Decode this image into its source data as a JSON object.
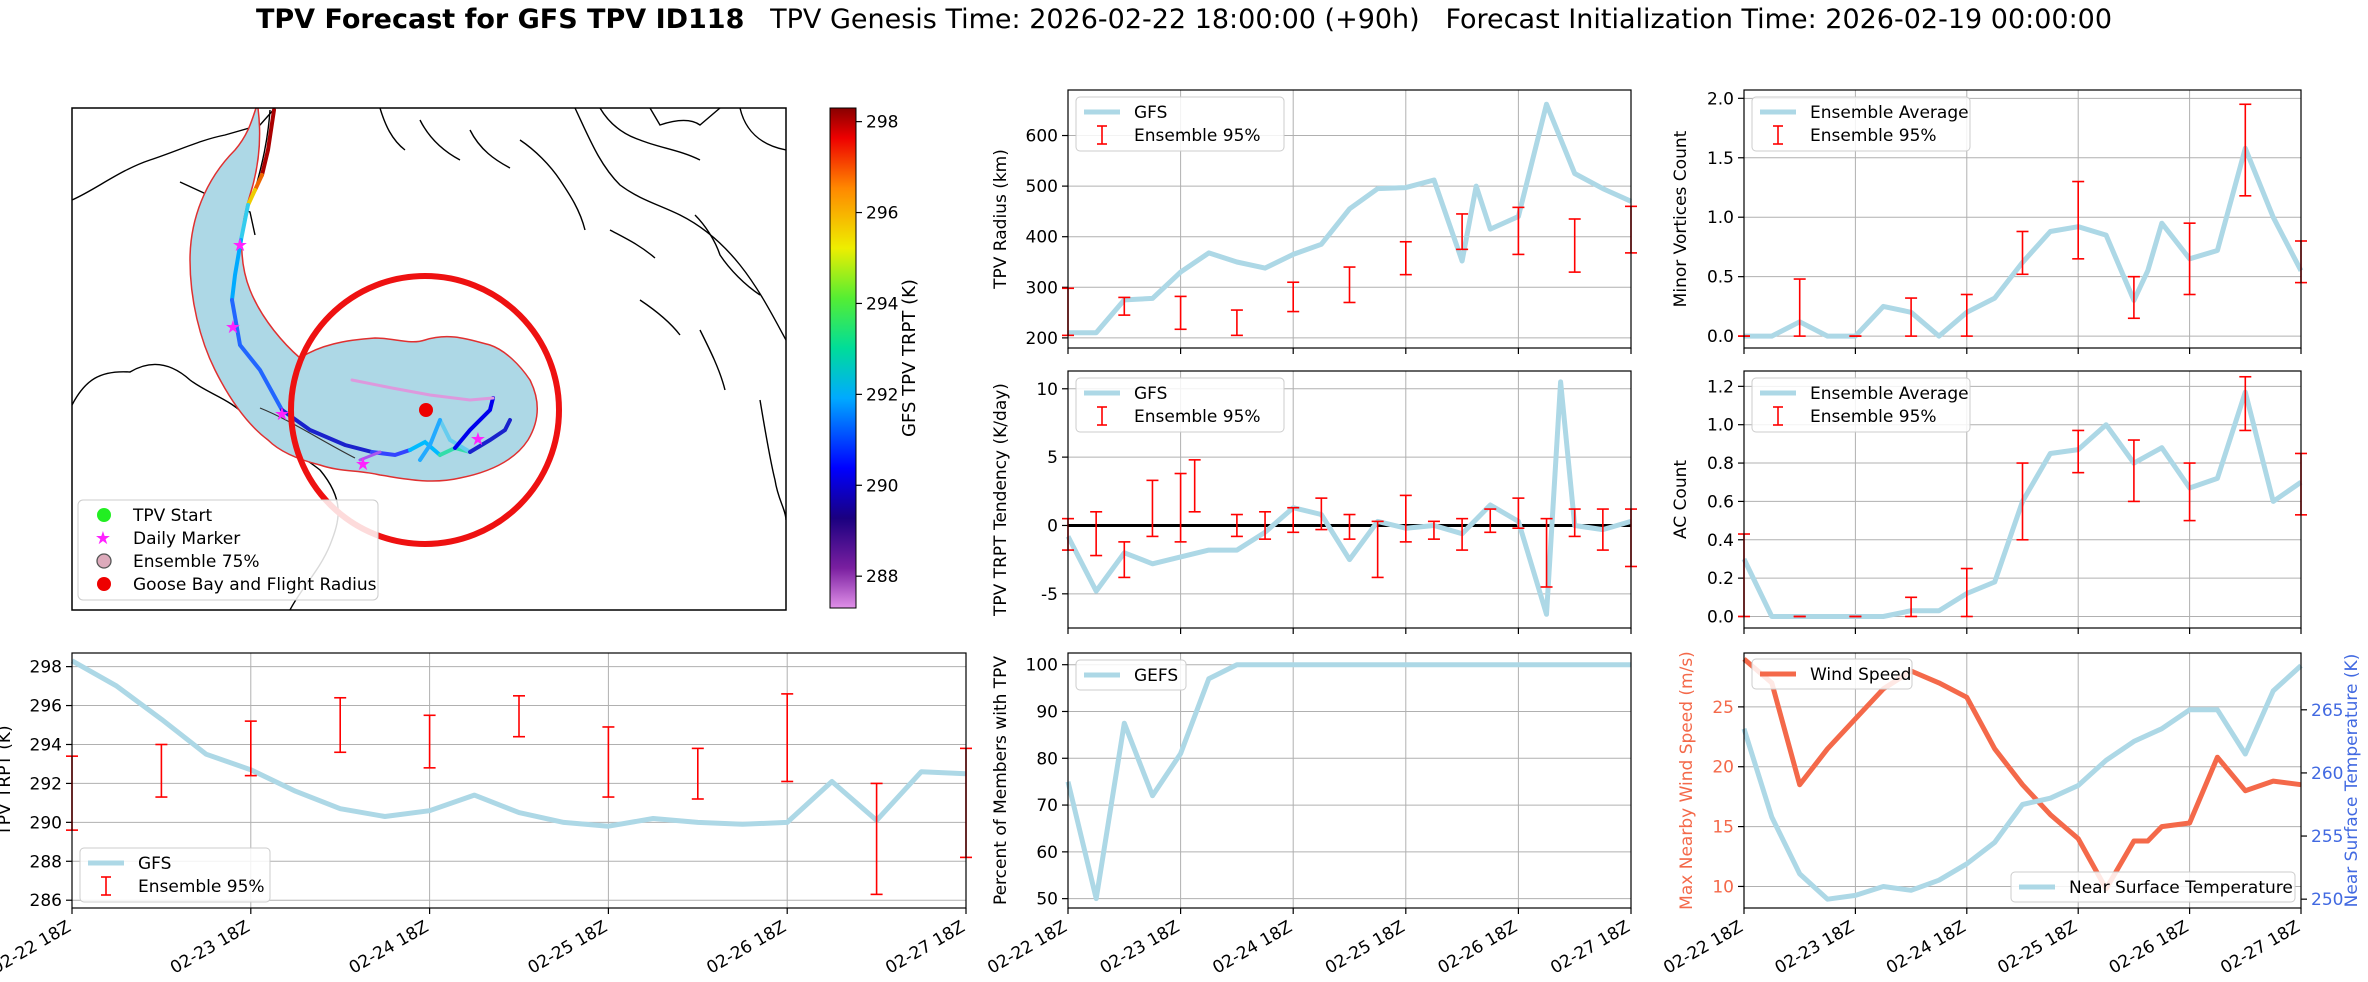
{
  "figure_title": {
    "bold": "TPV Forecast for GFS TPV ID118",
    "genesis": "TPV Genesis Time: 2026-02-22 18:00:00 (+90h)",
    "init": "Forecast Initialization Time: 2026-02-19 00:00:00"
  },
  "colors": {
    "track_fill": "#add8e6",
    "errorbar": "#ff0000",
    "wind": "#f4694a",
    "temperature_axis": "#4169e1",
    "grid": "#b0b0b0",
    "map_radius": "#ee1111"
  },
  "x_tick_labels": [
    "02-22 18Z",
    "02-23 18Z",
    "02-24 18Z",
    "02-25 18Z",
    "02-26 18Z",
    "02-27 18Z"
  ],
  "map": {
    "legend": [
      "TPV Start",
      "Daily Marker",
      "Ensemble 75%",
      "Goose Bay and Flight Radius"
    ],
    "colorbar_label": "GFS TPV TRPT (K)",
    "colorbar_ticks": [
      288,
      290,
      292,
      294,
      296,
      298
    ],
    "colorbar_range": [
      287.3,
      298.3
    ],
    "icons": [
      "tpv-start-marker-icon",
      "daily-marker-star-icon",
      "ensemble-75-patch-icon",
      "goose-bay-marker-icon"
    ]
  },
  "chart_data": [
    {
      "id": "radius",
      "type": "line",
      "ylabel": "TPV Radius (km)",
      "ylim": [
        180,
        690
      ],
      "yticks": [
        200,
        300,
        400,
        500,
        600
      ],
      "xlim": [
        0,
        40
      ],
      "grid": true,
      "legend": [
        "GFS",
        "Ensemble 95%"
      ],
      "legend_placement": "upper-left",
      "series": [
        {
          "name": "GFS",
          "x": [
            0,
            2,
            4,
            6,
            8,
            10,
            12,
            14,
            16,
            18,
            20,
            22,
            24,
            26,
            28,
            29,
            30,
            32,
            34,
            36,
            38,
            40
          ],
          "y": [
            210,
            210,
            275,
            278,
            330,
            368,
            350,
            338,
            365,
            385,
            455,
            495,
            497,
            512,
            352,
            500,
            415,
            440,
            662,
            525,
            495,
            470
          ]
        }
      ],
      "errorbars": [
        {
          "x": 0,
          "low": 205,
          "high": 298
        },
        {
          "x": 4,
          "low": 245,
          "high": 280
        },
        {
          "x": 8,
          "low": 217,
          "high": 282
        },
        {
          "x": 12,
          "low": 205,
          "high": 255
        },
        {
          "x": 16,
          "low": 252,
          "high": 310
        },
        {
          "x": 20,
          "low": 270,
          "high": 340
        },
        {
          "x": 24,
          "low": 325,
          "high": 390
        },
        {
          "x": 28,
          "low": 375,
          "high": 445
        },
        {
          "x": 32,
          "low": 365,
          "high": 458
        },
        {
          "x": 36,
          "low": 330,
          "high": 435
        },
        {
          "x": 40,
          "low": 368,
          "high": 460
        }
      ]
    },
    {
      "id": "minor",
      "type": "line",
      "ylabel": "Minor Vortices Count",
      "ylim": [
        -0.1,
        2.07
      ],
      "yticks": [
        0.0,
        0.5,
        1.0,
        1.5,
        2.0
      ],
      "tick_decimals": 1,
      "xlim": [
        0,
        40
      ],
      "grid": true,
      "legend": [
        "Ensemble Average",
        "Ensemble 95%"
      ],
      "legend_placement": "upper-left",
      "series": [
        {
          "name": "Ensemble Average",
          "x": [
            0,
            2,
            4,
            6,
            8,
            10,
            12,
            14,
            16,
            18,
            20,
            22,
            24,
            26,
            28,
            29,
            30,
            32,
            34,
            36,
            38,
            40
          ],
          "y": [
            0.0,
            0.0,
            0.12,
            0.0,
            0.0,
            0.25,
            0.2,
            0.0,
            0.2,
            0.32,
            0.62,
            0.88,
            0.92,
            0.85,
            0.3,
            0.55,
            0.95,
            0.65,
            0.72,
            1.58,
            1.0,
            0.55
          ]
        }
      ],
      "errorbars": [
        {
          "x": 0,
          "low": 0.0,
          "high": 0.0
        },
        {
          "x": 4,
          "low": 0.0,
          "high": 0.48
        },
        {
          "x": 8,
          "low": 0.0,
          "high": 0.0
        },
        {
          "x": 12,
          "low": 0.0,
          "high": 0.32
        },
        {
          "x": 16,
          "low": 0.0,
          "high": 0.35
        },
        {
          "x": 20,
          "low": 0.52,
          "high": 0.88
        },
        {
          "x": 24,
          "low": 0.65,
          "high": 1.3
        },
        {
          "x": 28,
          "low": 0.15,
          "high": 0.5
        },
        {
          "x": 32,
          "low": 0.35,
          "high": 0.95
        },
        {
          "x": 36,
          "low": 1.18,
          "high": 1.95
        },
        {
          "x": 40,
          "low": 0.45,
          "high": 0.8
        }
      ]
    },
    {
      "id": "tendency",
      "type": "line",
      "ylabel": "TPV TRPT Tendency (K/day)",
      "ylim": [
        -7.5,
        11.3
      ],
      "yticks": [
        -5,
        0,
        5,
        10
      ],
      "xlim": [
        0,
        40
      ],
      "grid": true,
      "zero_line": true,
      "legend": [
        "GFS",
        "Ensemble 95%"
      ],
      "legend_placement": "upper-left",
      "series": [
        {
          "name": "GFS",
          "x": [
            0,
            2,
            4,
            6,
            8,
            10,
            12,
            14,
            16,
            18,
            20,
            22,
            24,
            26,
            28,
            30,
            32,
            34,
            35,
            36,
            38,
            40
          ],
          "y": [
            -0.8,
            -4.8,
            -2.0,
            -2.8,
            -2.3,
            -1.8,
            -1.8,
            -0.5,
            1.3,
            0.8,
            -2.5,
            0.3,
            -0.2,
            0.0,
            -0.6,
            1.5,
            0.3,
            -6.5,
            10.5,
            0.0,
            -0.3,
            0.3
          ]
        }
      ],
      "errorbars": [
        {
          "x": 0,
          "low": -1.8,
          "high": 0.5
        },
        {
          "x": 2,
          "low": -2.2,
          "high": 1.0
        },
        {
          "x": 4,
          "low": -3.8,
          "high": -1.2
        },
        {
          "x": 6,
          "low": -0.8,
          "high": 3.3
        },
        {
          "x": 8,
          "low": -1.2,
          "high": 3.8
        },
        {
          "x": 9,
          "low": 1.0,
          "high": 4.8
        },
        {
          "x": 12,
          "low": -0.8,
          "high": 0.8
        },
        {
          "x": 14,
          "low": -1.0,
          "high": 1.0
        },
        {
          "x": 16,
          "low": -0.5,
          "high": 1.3
        },
        {
          "x": 18,
          "low": -0.3,
          "high": 2.0
        },
        {
          "x": 20,
          "low": -1.0,
          "high": 0.8
        },
        {
          "x": 22,
          "low": -3.8,
          "high": 0.3
        },
        {
          "x": 24,
          "low": -1.2,
          "high": 2.2
        },
        {
          "x": 26,
          "low": -1.0,
          "high": 0.3
        },
        {
          "x": 28,
          "low": -1.8,
          "high": 0.5
        },
        {
          "x": 30,
          "low": -0.5,
          "high": 1.2
        },
        {
          "x": 32,
          "low": -0.2,
          "high": 2.0
        },
        {
          "x": 34,
          "low": -4.5,
          "high": 0.5
        },
        {
          "x": 36,
          "low": -0.8,
          "high": 1.2
        },
        {
          "x": 38,
          "low": -1.8,
          "high": 1.2
        },
        {
          "x": 40,
          "low": -3.0,
          "high": 1.2
        }
      ]
    },
    {
      "id": "ac",
      "type": "line",
      "ylabel": "AC Count",
      "ylim": [
        -0.06,
        1.28
      ],
      "yticks": [
        0.0,
        0.2,
        0.4,
        0.6,
        0.8,
        1.0,
        1.2
      ],
      "tick_decimals": 1,
      "xlim": [
        0,
        40
      ],
      "grid": true,
      "legend": [
        "Ensemble Average",
        "Ensemble 95%"
      ],
      "legend_placement": "upper-left",
      "series": [
        {
          "name": "Ensemble Average",
          "x": [
            0,
            2,
            4,
            6,
            8,
            10,
            12,
            14,
            16,
            18,
            20,
            22,
            24,
            26,
            28,
            30,
            32,
            34,
            36,
            38,
            40
          ],
          "y": [
            0.3,
            0.0,
            0.0,
            0.0,
            0.0,
            0.0,
            0.03,
            0.03,
            0.12,
            0.18,
            0.6,
            0.85,
            0.87,
            1.0,
            0.8,
            0.88,
            0.67,
            0.72,
            1.17,
            0.6,
            0.7
          ]
        }
      ],
      "errorbars": [
        {
          "x": 0,
          "low": 0.0,
          "high": 0.43
        },
        {
          "x": 4,
          "low": 0.0,
          "high": 0.0
        },
        {
          "x": 8,
          "low": 0.0,
          "high": 0.0
        },
        {
          "x": 12,
          "low": 0.0,
          "high": 0.1
        },
        {
          "x": 16,
          "low": 0.0,
          "high": 0.25
        },
        {
          "x": 20,
          "low": 0.4,
          "high": 0.8
        },
        {
          "x": 24,
          "low": 0.75,
          "high": 0.97
        },
        {
          "x": 28,
          "low": 0.6,
          "high": 0.92
        },
        {
          "x": 32,
          "low": 0.5,
          "high": 0.8
        },
        {
          "x": 36,
          "low": 0.97,
          "high": 1.25
        },
        {
          "x": 40,
          "low": 0.53,
          "high": 0.85
        }
      ]
    },
    {
      "id": "trpt",
      "type": "line",
      "ylabel": "TPV TRPT (K)",
      "ylim": [
        285.6,
        298.7
      ],
      "yticks": [
        286,
        288,
        290,
        292,
        294,
        296,
        298
      ],
      "xlim": [
        0,
        40
      ],
      "grid": true,
      "legend": [
        "GFS",
        "Ensemble 95%"
      ],
      "legend_placement": "lower-left",
      "series": [
        {
          "name": "GFS",
          "x": [
            0,
            2,
            4,
            6,
            8,
            10,
            12,
            14,
            16,
            18,
            20,
            22,
            24,
            26,
            28,
            30,
            32,
            34,
            36,
            38,
            40
          ],
          "y": [
            298.3,
            297.0,
            295.3,
            293.5,
            292.7,
            291.6,
            290.7,
            290.3,
            290.6,
            291.4,
            290.5,
            290.0,
            289.8,
            290.2,
            290.0,
            289.9,
            290.0,
            292.1,
            290.1,
            292.6,
            292.5
          ]
        }
      ],
      "errorbars": [
        {
          "x": 0,
          "low": 289.6,
          "high": 293.4
        },
        {
          "x": 4,
          "low": 291.3,
          "high": 294.0
        },
        {
          "x": 8,
          "low": 292.4,
          "high": 295.2
        },
        {
          "x": 12,
          "low": 293.6,
          "high": 296.4
        },
        {
          "x": 16,
          "low": 292.8,
          "high": 295.5
        },
        {
          "x": 20,
          "low": 294.4,
          "high": 296.5
        },
        {
          "x": 24,
          "low": 291.3,
          "high": 294.9
        },
        {
          "x": 28,
          "low": 291.2,
          "high": 293.8
        },
        {
          "x": 32,
          "low": 292.1,
          "high": 296.6
        },
        {
          "x": 36,
          "low": 286.3,
          "high": 292.0
        },
        {
          "x": 40,
          "low": 288.2,
          "high": 293.8
        }
      ]
    },
    {
      "id": "percent",
      "type": "line",
      "ylabel": "Percent of Members with TPV",
      "ylim": [
        48,
        102.5
      ],
      "yticks": [
        50,
        60,
        70,
        80,
        90,
        100
      ],
      "xlim": [
        0,
        40
      ],
      "grid": true,
      "legend": [
        "GEFS"
      ],
      "legend_placement": "upper-left",
      "series": [
        {
          "name": "GEFS",
          "x": [
            0,
            2,
            4,
            6,
            8,
            10,
            12,
            14,
            40
          ],
          "y": [
            75,
            50,
            87.5,
            72,
            81,
            97,
            100,
            100,
            100
          ]
        }
      ],
      "errorbars": []
    },
    {
      "id": "wind_temp",
      "type": "line",
      "ylabel": "Max Nearby Wind Speed (m/s)",
      "y2label": "Near Surface Temperature (K)",
      "ylim": [
        8.2,
        29.5
      ],
      "yticks": [
        10,
        15,
        20,
        25
      ],
      "y2lim": [
        249.3,
        269.5
      ],
      "y2ticks": [
        250,
        255,
        260,
        265
      ],
      "xlim": [
        0,
        40
      ],
      "grid": true,
      "legend": [
        "Wind Speed",
        "Near Surface Temperature"
      ],
      "legend_placement": "upper-left / lower-right",
      "series": [
        {
          "name": "Wind Speed",
          "axis": "left",
          "x": [
            0,
            2,
            4,
            6,
            8,
            10,
            12,
            14,
            16,
            18,
            20,
            22,
            24,
            26,
            28,
            29,
            30,
            32,
            34,
            36,
            38,
            40
          ],
          "y": [
            29,
            27,
            18.5,
            21.5,
            24,
            26.5,
            28,
            27,
            25.8,
            21.5,
            18.5,
            16,
            14,
            9.8,
            13.8,
            13.8,
            15,
            15.3,
            20.8,
            18,
            18.8,
            18.5
          ]
        },
        {
          "name": "Near Surface Temperature",
          "axis": "right",
          "x": [
            0,
            2,
            4,
            6,
            8,
            10,
            12,
            14,
            16,
            18,
            20,
            22,
            24,
            26,
            28,
            30,
            32,
            34,
            36,
            38,
            40
          ],
          "y": [
            263.5,
            256.5,
            252.0,
            250.0,
            250.3,
            251.0,
            250.7,
            251.5,
            252.8,
            254.5,
            257.5,
            258.0,
            259.0,
            261.0,
            262.5,
            263.5,
            265.0,
            265.0,
            261.5,
            266.5,
            268.5
          ]
        }
      ],
      "errorbars": []
    }
  ]
}
